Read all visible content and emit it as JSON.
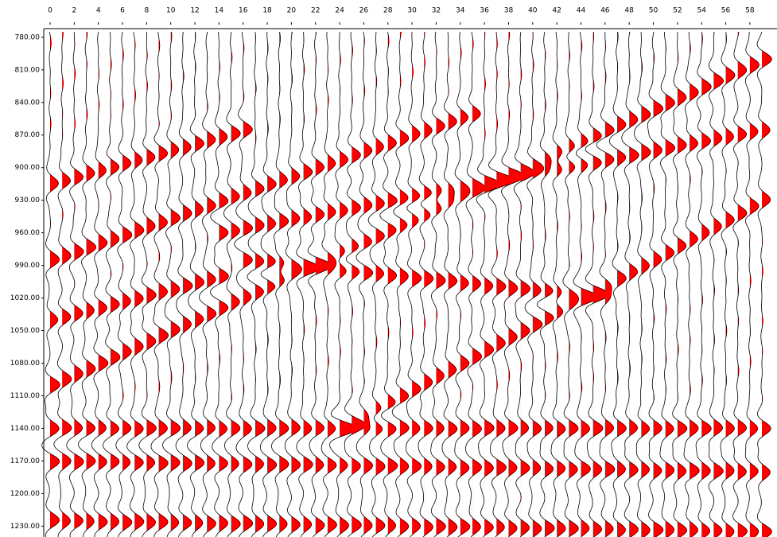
{
  "chart_data": {
    "type": "wiggle",
    "xlim": [
      0,
      59
    ],
    "xticks": [
      0,
      2,
      4,
      6,
      8,
      10,
      12,
      14,
      16,
      18,
      20,
      22,
      24,
      26,
      28,
      30,
      32,
      34,
      36,
      38,
      40,
      42,
      44,
      46,
      48,
      50,
      52,
      54,
      56,
      58
    ],
    "ylim": [
      775,
      1240
    ],
    "yticks": [
      {
        "value": 780,
        "label": "780.00"
      },
      {
        "value": 810,
        "label": "810.00"
      },
      {
        "value": 840,
        "label": "840.00"
      },
      {
        "value": 870,
        "label": "870.00"
      },
      {
        "value": 900,
        "label": "900.00"
      },
      {
        "value": 930,
        "label": "930.00"
      },
      {
        "value": 960,
        "label": "960.00"
      },
      {
        "value": 990,
        "label": "990.00"
      },
      {
        "value": 1020,
        "label": "1020.00"
      },
      {
        "value": 1050,
        "label": "1050.00"
      },
      {
        "value": 1080,
        "label": "1080.00"
      },
      {
        "value": 1110,
        "label": "1110.00"
      },
      {
        "value": 1140,
        "label": "1140.00"
      },
      {
        "value": 1170,
        "label": "1170.00"
      },
      {
        "value": 1200,
        "label": "1200.00"
      },
      {
        "value": 1230,
        "label": "1230.00"
      }
    ],
    "fill_color": "#ff0000",
    "line_color": "#000000",
    "events": [
      {
        "x": [
          0,
          35
        ],
        "y": [
          985,
          850
        ]
      },
      {
        "x": [
          0,
          59
        ],
        "y": [
          1100,
          800
        ]
      },
      {
        "x": [
          0,
          16
        ],
        "y": [
          915,
          865
        ]
      },
      {
        "x": [
          14,
          59
        ],
        "y": [
          960,
          865
        ]
      },
      {
        "x": [
          24,
          59
        ],
        "y": [
          1140,
          930
        ]
      },
      {
        "x": [
          16,
          46
        ],
        "y": [
          985,
          1020
        ]
      },
      {
        "x": [
          0,
          14
        ],
        "y": [
          1040,
          1000
        ]
      },
      {
        "x": [
          0,
          59
        ],
        "y": [
          1140,
          1140
        ]
      },
      {
        "x": [
          0,
          59
        ],
        "y": [
          1170,
          1180
        ]
      },
      {
        "x": [
          0,
          59
        ],
        "y": [
          1225,
          1235
        ]
      }
    ]
  }
}
